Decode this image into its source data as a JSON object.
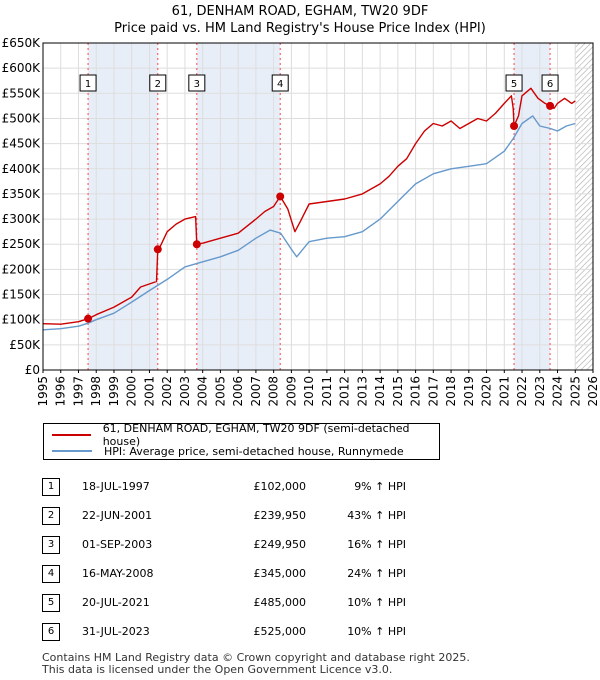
{
  "title_line1": "61, DENHAM ROAD, EGHAM, TW20 9DF",
  "title_line2": "Price paid vs. HM Land Registry's House Price Index (HPI)",
  "colors": {
    "property": "#cc0000",
    "hpi": "#6699cc",
    "band": "#e8eef8",
    "grid": "#dddddd",
    "marker_line": "#ff4444"
  },
  "chart_data": {
    "type": "line",
    "title": "Price paid vs. HM Land Registry's House Price Index (HPI)",
    "xlim": [
      1995,
      2026
    ],
    "ylim": [
      0,
      650000
    ],
    "y_ticks": [
      0,
      50000,
      100000,
      150000,
      200000,
      250000,
      300000,
      350000,
      400000,
      450000,
      500000,
      550000,
      600000,
      650000
    ],
    "y_tick_labels": [
      "£0",
      "£50K",
      "£100K",
      "£150K",
      "£200K",
      "£250K",
      "£300K",
      "£350K",
      "£400K",
      "£450K",
      "£500K",
      "£550K",
      "£600K",
      "£650K"
    ],
    "x_ticks": [
      1995,
      1996,
      1997,
      1998,
      1999,
      2000,
      2001,
      2002,
      2003,
      2004,
      2005,
      2006,
      2007,
      2008,
      2009,
      2010,
      2011,
      2012,
      2013,
      2014,
      2015,
      2016,
      2017,
      2018,
      2019,
      2020,
      2021,
      2022,
      2023,
      2024,
      2025,
      2026
    ],
    "x_tick_labels": [
      "1995",
      "1996",
      "1997",
      "1998",
      "1999",
      "2000",
      "2001",
      "2002",
      "2003",
      "2004",
      "2005",
      "2006",
      "2007",
      "2008",
      "2009",
      "2010",
      "2011",
      "2012",
      "2013",
      "2014",
      "2015",
      "2016",
      "2017",
      "2018",
      "2019",
      "2020",
      "2021",
      "2022",
      "2023",
      "2024",
      "2025",
      "2026"
    ],
    "shaded_bands": [
      [
        1997.54,
        2001.47
      ],
      [
        2003.67,
        2008.37
      ],
      [
        2021.55,
        2023.58
      ]
    ],
    "future_start": 2025.0,
    "series": [
      {
        "name": "61, DENHAM ROAD, EGHAM, TW20 9DF (semi-detached house)",
        "x": [
          1995.0,
          1996.0,
          1997.0,
          1997.54,
          1998.0,
          1999.0,
          2000.0,
          2000.5,
          2001.4,
          2001.47,
          2001.6,
          2002.0,
          2002.5,
          2003.0,
          2003.6,
          2003.67,
          2004.0,
          2005.0,
          2006.0,
          2007.0,
          2007.5,
          2008.0,
          2008.37,
          2008.8,
          2009.2,
          2009.5,
          2010.0,
          2011.0,
          2012.0,
          2013.0,
          2014.0,
          2014.5,
          2015.0,
          2015.5,
          2016.0,
          2016.5,
          2017.0,
          2017.5,
          2018.0,
          2018.5,
          2019.0,
          2019.5,
          2020.0,
          2020.5,
          2021.0,
          2021.4,
          2021.5,
          2021.55,
          2021.8,
          2022.0,
          2022.5,
          2022.9,
          2023.3,
          2023.58,
          2023.8,
          2024.0,
          2024.4,
          2024.8,
          2025.0
        ],
        "values": [
          92000,
          91000,
          96000,
          102000,
          110000,
          125000,
          145000,
          165000,
          176000,
          239950,
          245000,
          275000,
          290000,
          300000,
          305000,
          249950,
          252000,
          262000,
          272000,
          300000,
          315000,
          325000,
          345000,
          320000,
          275000,
          295000,
          330000,
          335000,
          340000,
          350000,
          370000,
          385000,
          405000,
          420000,
          450000,
          475000,
          490000,
          485000,
          495000,
          480000,
          490000,
          500000,
          495000,
          510000,
          530000,
          545000,
          520000,
          485000,
          505000,
          545000,
          560000,
          540000,
          530000,
          525000,
          520000,
          530000,
          540000,
          530000,
          535000
        ]
      },
      {
        "name": "HPI: Average price, semi-detached house, Runnymede",
        "x": [
          1995.0,
          1996.0,
          1997.0,
          1997.54,
          1998.0,
          1999.0,
          2000.0,
          2001.0,
          2002.0,
          2003.0,
          2004.0,
          2005.0,
          2006.0,
          2007.0,
          2007.8,
          2008.4,
          2009.0,
          2009.3,
          2010.0,
          2011.0,
          2012.0,
          2013.0,
          2014.0,
          2015.0,
          2016.0,
          2017.0,
          2017.5,
          2018.0,
          2019.0,
          2020.0,
          2021.0,
          2021.5,
          2022.0,
          2022.6,
          2023.0,
          2023.6,
          2024.0,
          2024.5,
          2025.0
        ],
        "values": [
          80000,
          82000,
          87000,
          93000,
          100000,
          113000,
          135000,
          158000,
          180000,
          205000,
          215000,
          225000,
          238000,
          262000,
          278000,
          272000,
          240000,
          225000,
          255000,
          262000,
          265000,
          275000,
          300000,
          335000,
          370000,
          390000,
          395000,
          400000,
          405000,
          410000,
          435000,
          460000,
          490000,
          505000,
          485000,
          480000,
          475000,
          485000,
          490000
        ]
      }
    ],
    "sale_points": [
      {
        "label": "1",
        "x": 1997.54,
        "value": 102000
      },
      {
        "label": "2",
        "x": 2001.47,
        "value": 239950
      },
      {
        "label": "3",
        "x": 2003.67,
        "value": 249950
      },
      {
        "label": "4",
        "x": 2008.37,
        "value": 345000
      },
      {
        "label": "5",
        "x": 2021.55,
        "value": 485000
      },
      {
        "label": "6",
        "x": 2023.58,
        "value": 525000
      }
    ]
  },
  "legend": {
    "property_label": "61, DENHAM ROAD, EGHAM, TW20 9DF (semi-detached house)",
    "hpi_label": "HPI: Average price, semi-detached house, Runnymede"
  },
  "sales": [
    {
      "index": "1",
      "date": "18-JUL-1997",
      "price": "£102,000",
      "hpi": "9% ↑ HPI"
    },
    {
      "index": "2",
      "date": "22-JUN-2001",
      "price": "£239,950",
      "hpi": "43% ↑ HPI"
    },
    {
      "index": "3",
      "date": "01-SEP-2003",
      "price": "£249,950",
      "hpi": "16% ↑ HPI"
    },
    {
      "index": "4",
      "date": "16-MAY-2008",
      "price": "£345,000",
      "hpi": "24% ↑ HPI"
    },
    {
      "index": "5",
      "date": "20-JUL-2021",
      "price": "£485,000",
      "hpi": "10% ↑ HPI"
    },
    {
      "index": "6",
      "date": "31-JUL-2023",
      "price": "£525,000",
      "hpi": "10% ↑ HPI"
    }
  ],
  "footer": {
    "line1": "Contains HM Land Registry data © Crown copyright and database right 2025.",
    "line2": "This data is licensed under the Open Government Licence v3.0."
  }
}
